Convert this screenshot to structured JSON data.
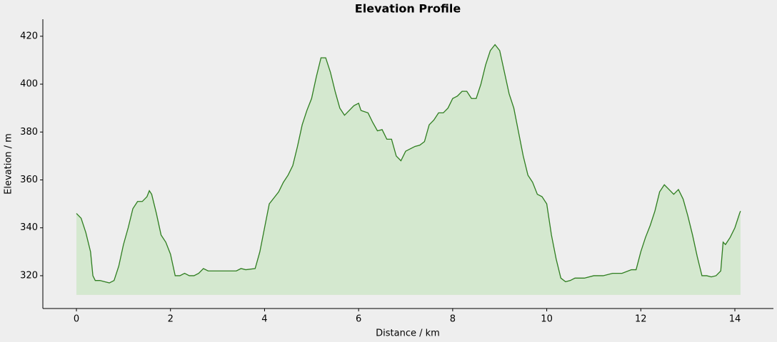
{
  "chart_data": {
    "type": "area",
    "title": "Elevation Profile",
    "x_label": "Distance / km",
    "y_label": "Elevation / m",
    "x": [
      0,
      0.1,
      0.2,
      0.3,
      0.35,
      0.4,
      0.5,
      0.6,
      0.7,
      0.8,
      0.9,
      1.0,
      1.1,
      1.2,
      1.3,
      1.4,
      1.5,
      1.55,
      1.6,
      1.7,
      1.8,
      1.9,
      2.0,
      2.1,
      2.2,
      2.3,
      2.4,
      2.5,
      2.6,
      2.7,
      2.8,
      2.9,
      3.0,
      3.2,
      3.4,
      3.5,
      3.6,
      3.8,
      3.9,
      4.0,
      4.1,
      4.2,
      4.3,
      4.4,
      4.5,
      4.6,
      4.7,
      4.8,
      4.9,
      5.0,
      5.1,
      5.2,
      5.3,
      5.4,
      5.5,
      5.6,
      5.7,
      5.8,
      5.9,
      6.0,
      6.05,
      6.2,
      6.3,
      6.4,
      6.5,
      6.6,
      6.7,
      6.8,
      6.9,
      7.0,
      7.1,
      7.2,
      7.3,
      7.4,
      7.5,
      7.6,
      7.7,
      7.8,
      7.9,
      8.0,
      8.1,
      8.2,
      8.3,
      8.4,
      8.5,
      8.6,
      8.7,
      8.8,
      8.9,
      9.0,
      9.1,
      9.2,
      9.3,
      9.4,
      9.5,
      9.6,
      9.7,
      9.8,
      9.9,
      10.0,
      10.1,
      10.2,
      10.3,
      10.4,
      10.5,
      10.6,
      10.8,
      11.0,
      11.2,
      11.4,
      11.6,
      11.8,
      11.9,
      12.0,
      12.1,
      12.2,
      12.3,
      12.4,
      12.5,
      12.6,
      12.7,
      12.8,
      12.9,
      13.0,
      13.1,
      13.2,
      13.3,
      13.4,
      13.5,
      13.6,
      13.7,
      13.75,
      13.8,
      13.9,
      14.0,
      14.1,
      14.12
    ],
    "y": [
      346,
      344,
      338,
      330,
      320,
      318,
      318,
      317.5,
      317,
      318,
      324,
      333,
      340,
      348,
      351,
      351,
      353,
      355.5,
      354,
      346,
      337,
      334,
      329,
      320,
      320,
      321,
      320,
      320,
      321,
      323,
      322,
      322,
      322,
      322,
      322,
      323,
      322.5,
      323,
      330,
      340,
      350,
      352.5,
      355,
      359,
      362,
      366,
      374,
      383,
      389,
      394,
      403,
      411,
      411,
      405,
      397,
      390,
      387,
      389,
      391,
      392,
      389,
      388,
      384,
      380.5,
      381,
      377,
      377,
      370,
      368,
      372,
      373,
      374,
      374.5,
      376,
      383,
      385,
      388,
      388,
      390,
      394,
      395,
      397,
      397,
      394,
      394,
      400,
      408,
      414,
      416.5,
      414,
      405,
      396,
      390,
      380,
      370,
      362,
      359,
      354,
      353,
      350,
      337,
      327,
      319,
      317.5,
      318,
      319,
      319,
      320,
      320,
      321,
      321,
      322.5,
      322.5,
      330,
      336,
      341,
      347,
      355,
      358,
      356,
      354,
      356,
      352,
      345,
      337,
      328,
      320,
      320,
      319.5,
      320,
      322,
      334,
      333,
      336,
      340,
      346,
      347
    ],
    "fill_to": 312,
    "line_color": "#2e7d1f",
    "fill_color": "#d4e8cf",
    "xlim": [
      -0.714,
      14.82
    ],
    "ylim": [
      306.3,
      427.1
    ],
    "xticks": [
      0,
      2,
      4,
      6,
      8,
      10,
      12,
      14
    ],
    "yticks": [
      320,
      340,
      360,
      380,
      400,
      420
    ]
  }
}
